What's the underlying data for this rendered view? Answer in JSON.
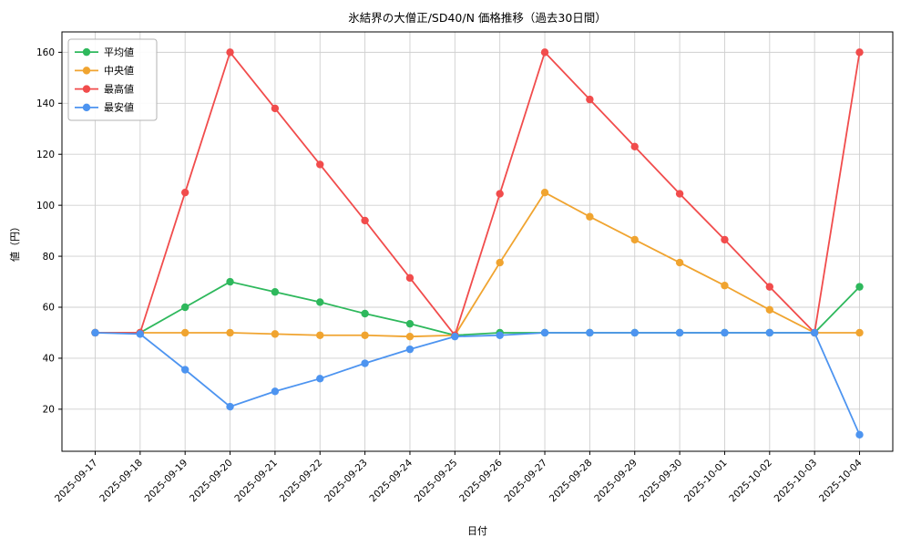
{
  "figure": {
    "background": "#ffffff",
    "frame_color": "#000000",
    "grid_color": "#cfcfcf",
    "legend_border_color": "#b3b3b3"
  },
  "chart_data": {
    "type": "line",
    "title": "氷結界の大僧正/SD40/N 価格推移（過去30日間）",
    "xlabel": "日付",
    "ylabel": "値（円）",
    "x": [
      "2025-09-17",
      "2025-09-18",
      "2025-09-19",
      "2025-09-20",
      "2025-09-21",
      "2025-09-22",
      "2025-09-23",
      "2025-09-24",
      "2025-09-25",
      "2025-09-26",
      "2025-09-27",
      "2025-09-28",
      "2025-09-29",
      "2025-09-30",
      "2025-10-01",
      "2025-10-02",
      "2025-10-03",
      "2025-10-04"
    ],
    "yticks": [
      20,
      40,
      60,
      80,
      100,
      120,
      140,
      160
    ],
    "ylim": [
      3.5,
      168
    ],
    "grid": true,
    "legend_position": "upper-left",
    "series": [
      {
        "id": "average",
        "name": "平均値",
        "color": "#2eb85c",
        "values": [
          50,
          50,
          60,
          70,
          66,
          62,
          57.5,
          53.5,
          49,
          50,
          50,
          50,
          50,
          50,
          50,
          50,
          50,
          68
        ]
      },
      {
        "id": "median",
        "name": "中央値",
        "color": "#f0a430",
        "values": [
          50,
          50,
          50,
          50,
          49.5,
          49,
          49,
          48.5,
          49,
          77.5,
          105,
          95.5,
          86.5,
          77.5,
          68.5,
          59,
          50,
          50
        ]
      },
      {
        "id": "max",
        "name": "最高値",
        "color": "#f14c4c",
        "values": [
          50,
          50,
          105,
          160,
          138,
          116,
          94,
          71.5,
          49,
          104.5,
          160,
          141.5,
          123,
          104.5,
          86.5,
          68,
          50,
          160
        ]
      },
      {
        "id": "min",
        "name": "最安値",
        "color": "#4d94f0",
        "values": [
          50,
          49.5,
          35.5,
          21,
          27,
          32,
          38,
          43.5,
          48.5,
          49,
          50,
          50,
          50,
          50,
          50,
          50,
          50,
          10
        ]
      }
    ]
  }
}
